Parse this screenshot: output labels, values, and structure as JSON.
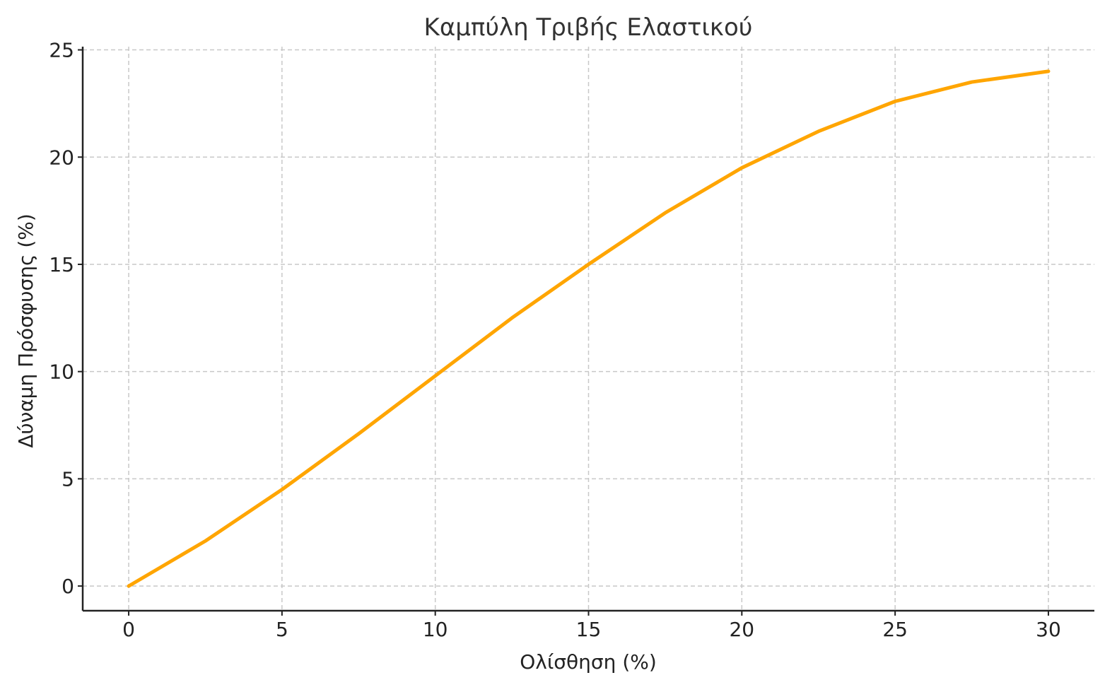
{
  "chart_data": {
    "type": "line",
    "title": "Καμπύλη Τριβής Ελαστικού",
    "x_label": "Ολίσθηση (%)",
    "y_label": "Δύναμη Πρόσφυσης (%)",
    "x": [
      0,
      2.5,
      5,
      7.5,
      10,
      12.5,
      15,
      17.5,
      20,
      22.5,
      25,
      27.5,
      30
    ],
    "series": [
      {
        "name": "Δύναμη Πρόσφυσης",
        "color": "#ffa500",
        "values": [
          0,
          2.1,
          4.5,
          7.1,
          9.8,
          12.5,
          15.0,
          17.4,
          19.5,
          21.2,
          22.6,
          23.5,
          24.0
        ]
      }
    ],
    "xlim": [
      -1.5,
      31.5
    ],
    "ylim": [
      -1.15,
      25.15
    ],
    "xticks": [
      0,
      5,
      10,
      15,
      20,
      25,
      30
    ],
    "yticks": [
      0,
      5,
      10,
      15,
      20,
      25
    ],
    "grid": true
  }
}
